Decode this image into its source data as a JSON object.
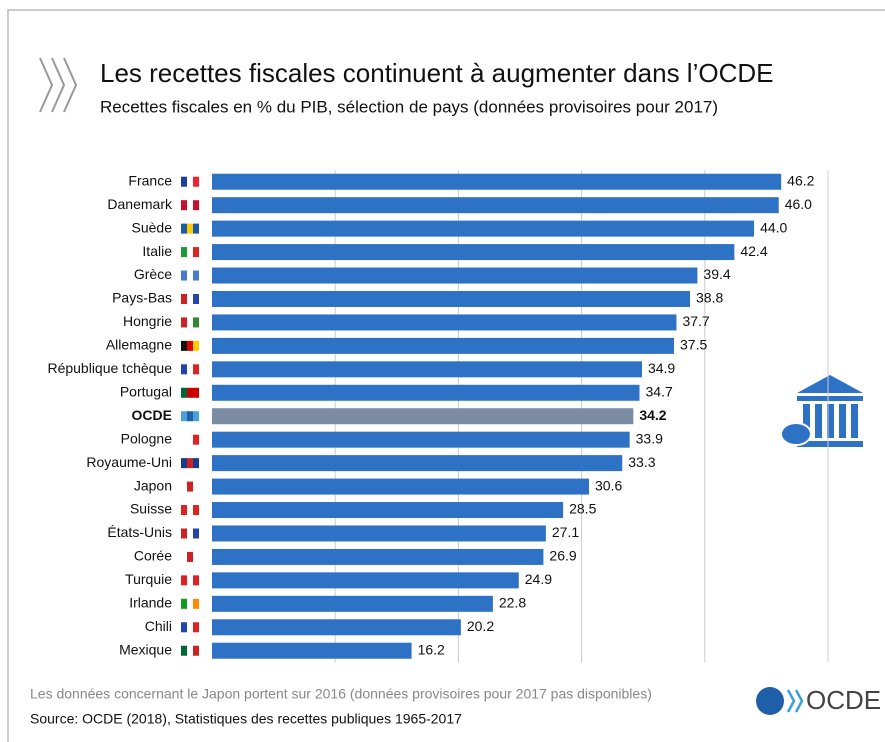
{
  "chart_data": {
    "type": "barh",
    "title": "Les recettes fiscales continuent à augmenter dans l’OCDE",
    "subtitle": "Recettes fiscales en % du PIB, sélection de pays (données provisoires pour 2017)",
    "categories": [
      "France",
      "Danemark",
      "Suède",
      "Italie",
      "Grèce",
      "Pays-Bas",
      "Hongrie",
      "Allemagne",
      "République tchèque",
      "Portugal",
      "OCDE",
      "Pologne",
      "Royaume-Uni",
      "Japon",
      "Suisse",
      "États-Unis",
      "Corée",
      "Turquie",
      "Irlande",
      "Chili",
      "Mexique"
    ],
    "values": [
      46.2,
      46.0,
      44.0,
      42.4,
      39.4,
      38.8,
      37.7,
      37.5,
      34.9,
      34.7,
      34.2,
      33.9,
      33.3,
      30.6,
      28.5,
      27.1,
      26.9,
      24.9,
      22.8,
      20.2,
      16.2
    ],
    "value_labels": [
      "46.2",
      "46.0",
      "44.0",
      "42.4",
      "39.4",
      "38.8",
      "37.7",
      "37.5",
      "34.9",
      "34.7",
      "34.2",
      "33.9",
      "33.3",
      "30.6",
      "28.5",
      "27.1",
      "26.9",
      "24.9",
      "22.8",
      "20.2",
      "16.2"
    ],
    "colors": [
      "#2e72c6",
      "#2e72c6",
      "#2e72c6",
      "#2e72c6",
      "#2e72c6",
      "#2e72c6",
      "#2e72c6",
      "#2e72c6",
      "#2e72c6",
      "#2e72c6",
      "#7b8ca5",
      "#2e72c6",
      "#2e72c6",
      "#2e72c6",
      "#2e72c6",
      "#2e72c6",
      "#2e72c6",
      "#2e72c6",
      "#2e72c6",
      "#2e72c6",
      "#2e72c6"
    ],
    "xlim": [
      0,
      50
    ],
    "xticks": [
      10,
      20,
      30,
      40,
      50
    ],
    "grid": true,
    "note": "Les données concernant le Japon portent sur 2016 (données provisoires pour 2017 pas disponibles)",
    "source": "Source: OCDE (2018), Statistiques des recettes publiques 1965-2017",
    "logo": "OCDE"
  }
}
